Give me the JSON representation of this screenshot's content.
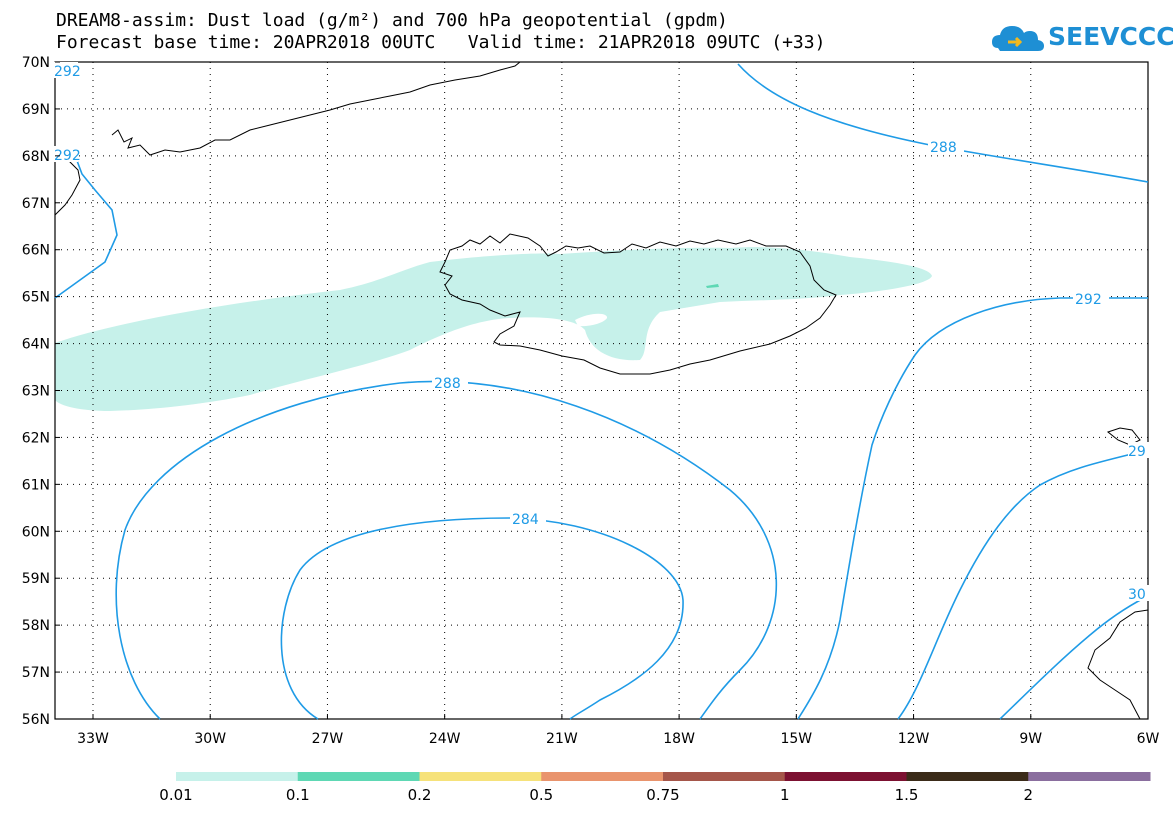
{
  "title_line1": "DREAM8-assim: Dust load (g/m²) and 700 hPa geopotential (gpdm)",
  "title_line2": "Forecast base time: 20APR2018 00UTC   Valid time: 21APR2018 09UTC (+33)",
  "logo_text": "SEEVCCC",
  "lat_labels": [
    "70N",
    "69N",
    "68N",
    "67N",
    "66N",
    "65N",
    "64N",
    "63N",
    "62N",
    "61N",
    "60N",
    "59N",
    "58N",
    "57N",
    "56N"
  ],
  "lon_labels": [
    "33W",
    "30W",
    "27W",
    "24W",
    "21W",
    "18W",
    "15W",
    "12W",
    "9W",
    "6W"
  ],
  "contour_labels": [
    "292",
    "292",
    "288",
    "292",
    "288",
    "284",
    "29",
    "30"
  ],
  "colorbar": {
    "colors": [
      "#c6f1ea",
      "#5ed8b4",
      "#f6e27a",
      "#e9946d",
      "#a5564a",
      "#7c1131",
      "#3b2b19",
      "#8a6e9e"
    ],
    "labels": [
      "0.01",
      "0.1",
      "0.2",
      "0.5",
      "0.75",
      "1",
      "1.5",
      "2"
    ]
  },
  "colors": {
    "contour": "#1f9be6",
    "dust_low": "#c6f1ea",
    "dust_mid": "#5ed8b4",
    "coast": "#000000"
  }
}
